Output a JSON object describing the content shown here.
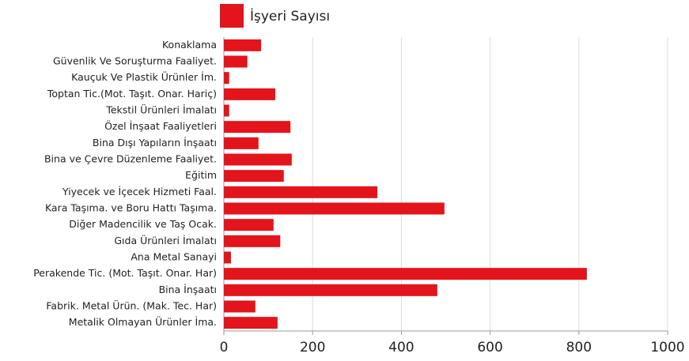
{
  "chart_data": {
    "type": "barh",
    "categories": [
      "Konaklama",
      "Güvenlik Ve Soruşturma Faaliyet.",
      "Kauçuk Ve Plastik Ürünler İm.",
      "Toptan Tic.(Mot. Taşıt. Onar. Hariç)",
      "Tekstil Ürünleri İmalatı",
      "Özel İnşaat Faaliyetleri",
      "Bina Dışı Yapıların İnşaatı",
      "Bina ve Çevre Düzenleme Faaliyet.",
      "Eğitim",
      "Yiyecek ve İçecek Hizmeti Faal.",
      "Kara Taşıma. ve Boru Hattı Taşıma.",
      "Diğer Madencilik ve Taş Ocak.",
      "Gıda Ürünleri İmalatı",
      "Ana Metal Sanayi",
      "Perakende Tic. (Mot. Taşıt. Onar. Har)",
      "Bina İnşaatı",
      "Fabrik. Metal Ürün. (Mak. Tec. Har)",
      "Metalik Olmayan Ürünler İma."
    ],
    "series": [
      {
        "name": "İşyeri Sayısı",
        "color": "#e3141b",
        "values": [
          84,
          53,
          12,
          116,
          12,
          150,
          78,
          153,
          135,
          346,
          497,
          112,
          127,
          16,
          818,
          481,
          71,
          121
        ]
      }
    ],
    "xlim": [
      0,
      1000
    ],
    "xticks": [
      0,
      200,
      400,
      600,
      800,
      1000
    ],
    "grid": true,
    "legend": "top"
  }
}
